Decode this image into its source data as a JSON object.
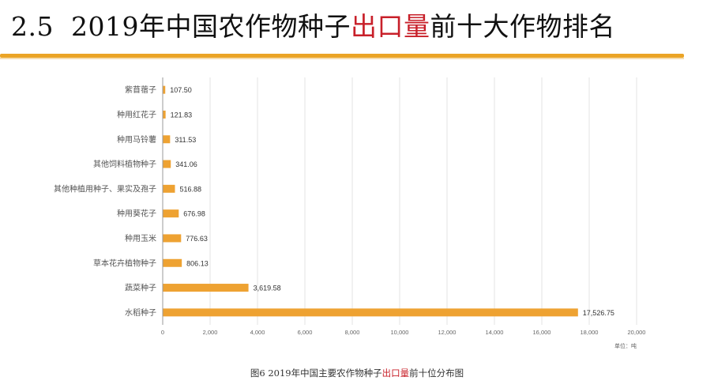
{
  "header": {
    "section_number": "2.5",
    "title_before": "2019年中国农作物种子",
    "title_highlight": "出口量",
    "title_after": "前十大作物排名"
  },
  "colors": {
    "accent": "#eba426",
    "bar": "#eea232",
    "highlight": "#c8202a"
  },
  "chart_data": {
    "type": "bar",
    "orientation": "horizontal",
    "categories": [
      "紫苜蓿子",
      "种用红花子",
      "种用马铃薯",
      "其他饲料植物种子",
      "其他种植用种子、果实及孢子",
      "种用葵花子",
      "种用玉米",
      "草本花卉植物种子",
      "蔬菜种子",
      "水稻种子"
    ],
    "values": [
      107.5,
      121.83,
      311.53,
      341.06,
      516.88,
      676.98,
      776.63,
      806.13,
      3619.58,
      17526.75
    ],
    "value_labels": [
      "107.50",
      "121.83",
      "311.53",
      "341.06",
      "516.88",
      "676.98",
      "776.63",
      "806.13",
      "3,619.58",
      "17,526.75"
    ],
    "x_ticks": [
      0,
      2000,
      4000,
      6000,
      8000,
      10000,
      12000,
      14000,
      16000,
      18000,
      20000
    ],
    "x_tick_labels": [
      "0",
      "2,000",
      "4,000",
      "6,000",
      "8,000",
      "10,000",
      "12,000",
      "14,000",
      "16,000",
      "18,000",
      "20,000"
    ],
    "xlim": [
      0,
      20000
    ],
    "unit_label": "单位：吨",
    "grid": true
  },
  "caption": {
    "prefix": "图6  2019年中国主要农作物种子",
    "highlight": "出口量",
    "suffix": "前十位分布图"
  }
}
